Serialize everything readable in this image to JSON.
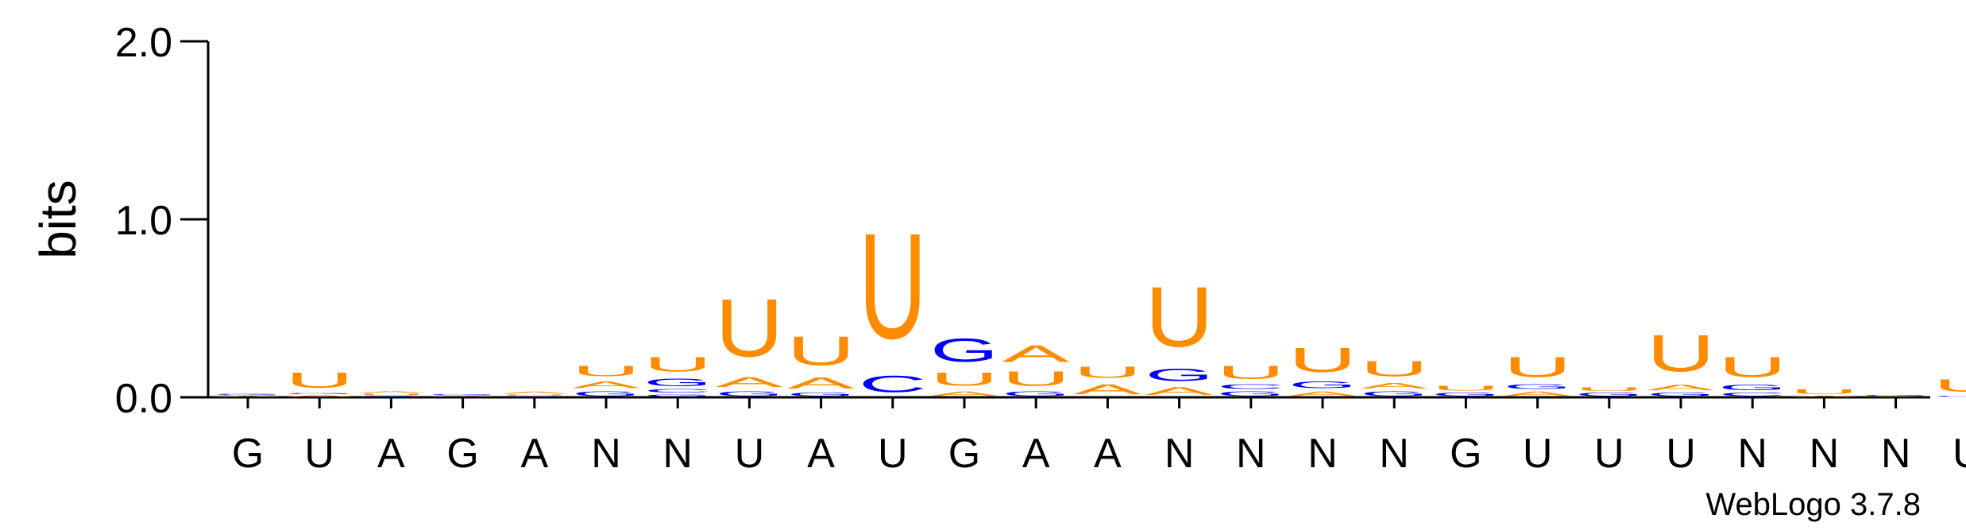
{
  "chart_data": {
    "type": "sequence-logo",
    "title": "",
    "ylabel": "bits",
    "ylim": [
      0,
      2.0
    ],
    "yticks": [
      "0.0",
      "1.0",
      "2.0"
    ],
    "colors": {
      "U": "#ff8c00",
      "A": "#ff8c00",
      "G": "#0000ff",
      "C": "#0000ff"
    },
    "credit": "WebLogo 3.7.8",
    "positions": [
      {
        "consensus": "G",
        "letters": [
          {
            "b": "A",
            "h": 0.01
          },
          {
            "b": "G",
            "h": 0.008
          },
          {
            "b": "C",
            "h": 0.006
          }
        ]
      },
      {
        "consensus": "U",
        "letters": [
          {
            "b": "A",
            "h": 0.015
          },
          {
            "b": "G",
            "h": 0.01
          },
          {
            "b": "U",
            "h": 0.14
          }
        ]
      },
      {
        "consensus": "A",
        "letters": [
          {
            "b": "G",
            "h": 0.008
          },
          {
            "b": "U",
            "h": 0.012
          },
          {
            "b": "A",
            "h": 0.018
          }
        ]
      },
      {
        "consensus": "G",
        "letters": [
          {
            "b": "C",
            "h": 0.004
          },
          {
            "b": "A",
            "h": 0.006
          },
          {
            "b": "G",
            "h": 0.008
          }
        ]
      },
      {
        "consensus": "A",
        "letters": [
          {
            "b": "G",
            "h": 0.006
          },
          {
            "b": "U",
            "h": 0.01
          },
          {
            "b": "A",
            "h": 0.02
          }
        ]
      },
      {
        "consensus": "N",
        "letters": [
          {
            "b": "G",
            "h": 0.04
          },
          {
            "b": "A",
            "h": 0.06
          },
          {
            "b": "U",
            "h": 0.09
          }
        ]
      },
      {
        "consensus": "N",
        "letters": [
          {
            "b": "G",
            "h": 0.02
          },
          {
            "b": "C",
            "h": 0.03
          },
          {
            "b": "G",
            "h": 0.07
          },
          {
            "b": "U",
            "h": 0.13
          }
        ]
      },
      {
        "consensus": "U",
        "letters": [
          {
            "b": "G",
            "h": 0.04
          },
          {
            "b": "A",
            "h": 0.09
          },
          {
            "b": "U",
            "h": 0.52
          }
        ]
      },
      {
        "consensus": "A",
        "letters": [
          {
            "b": "G",
            "h": 0.03
          },
          {
            "b": "A",
            "h": 0.1
          },
          {
            "b": "U",
            "h": 0.26
          }
        ]
      },
      {
        "consensus": "U",
        "letters": [
          {
            "b": "C",
            "h": 0.15
          },
          {
            "b": "U",
            "h": 0.95
          }
        ]
      },
      {
        "consensus": "G",
        "letters": [
          {
            "b": "A",
            "h": 0.04
          },
          {
            "b": "U",
            "h": 0.12
          },
          {
            "b": "G",
            "h": 0.21
          }
        ]
      },
      {
        "consensus": "A",
        "letters": [
          {
            "b": "G",
            "h": 0.04
          },
          {
            "b": "U",
            "h": 0.13
          },
          {
            "b": "A",
            "h": 0.15
          }
        ]
      },
      {
        "consensus": "A",
        "letters": [
          {
            "b": "A",
            "h": 0.09
          },
          {
            "b": "U",
            "h": 0.1
          }
        ]
      },
      {
        "consensus": "N",
        "letters": [
          {
            "b": "A",
            "h": 0.07
          },
          {
            "b": "G",
            "h": 0.11
          },
          {
            "b": "U",
            "h": 0.54
          }
        ]
      },
      {
        "consensus": "N",
        "letters": [
          {
            "b": "G",
            "h": 0.04
          },
          {
            "b": "C",
            "h": 0.04
          },
          {
            "b": "U",
            "h": 0.12
          }
        ]
      },
      {
        "consensus": "N",
        "letters": [
          {
            "b": "A",
            "h": 0.04
          },
          {
            "b": "G",
            "h": 0.06
          },
          {
            "b": "U",
            "h": 0.22
          }
        ]
      },
      {
        "consensus": "N",
        "letters": [
          {
            "b": "G",
            "h": 0.04
          },
          {
            "b": "A",
            "h": 0.05
          },
          {
            "b": "U",
            "h": 0.14
          }
        ]
      },
      {
        "consensus": "G",
        "letters": [
          {
            "b": "G",
            "h": 0.03
          },
          {
            "b": "U",
            "h": 0.04
          }
        ]
      },
      {
        "consensus": "U",
        "letters": [
          {
            "b": "A",
            "h": 0.04
          },
          {
            "b": "G",
            "h": 0.04
          },
          {
            "b": "U",
            "h": 0.18
          }
        ]
      },
      {
        "consensus": "U",
        "letters": [
          {
            "b": "G",
            "h": 0.03
          },
          {
            "b": "U",
            "h": 0.03
          }
        ]
      },
      {
        "consensus": "U",
        "letters": [
          {
            "b": "G",
            "h": 0.03
          },
          {
            "b": "A",
            "h": 0.05
          },
          {
            "b": "U",
            "h": 0.33
          }
        ]
      },
      {
        "consensus": "N",
        "letters": [
          {
            "b": "C",
            "h": 0.03
          },
          {
            "b": "G",
            "h": 0.05
          },
          {
            "b": "U",
            "h": 0.18
          }
        ]
      },
      {
        "consensus": "N",
        "letters": [
          {
            "b": "A",
            "h": 0.01
          },
          {
            "b": "U",
            "h": 0.04
          }
        ]
      },
      {
        "consensus": "N",
        "letters": [
          {
            "b": "A",
            "h": 0.006
          },
          {
            "b": "G",
            "h": 0.008
          }
        ]
      },
      {
        "consensus": "U",
        "letters": [
          {
            "b": "G",
            "h": 0.01
          },
          {
            "b": "U",
            "h": 0.11
          }
        ]
      }
    ],
    "trailing": {
      "letters": [
        {
          "b": "U",
          "h": 0.03
        }
      ]
    }
  }
}
